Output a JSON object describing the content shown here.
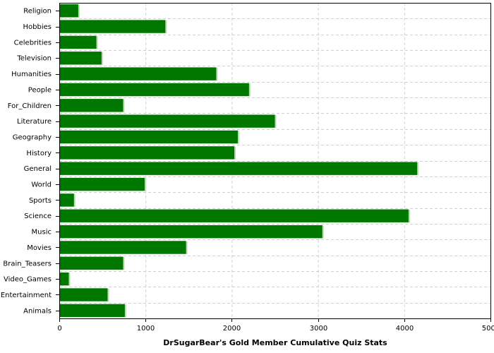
{
  "chart_data": {
    "type": "bar",
    "orientation": "horizontal",
    "title": "",
    "xlabel": "DrSugarBear's Gold Member Cumulative Quiz Stats",
    "ylabel": "",
    "xlim": [
      0,
      5000
    ],
    "xticks": [
      0,
      1000,
      2000,
      3000,
      4000,
      5000
    ],
    "grid": true,
    "categories": [
      "Religion",
      "Hobbies",
      "Celebrities",
      "Television",
      "Humanities",
      "People",
      "For_Children",
      "Literature",
      "Geography",
      "History",
      "General",
      "World",
      "Sports",
      "Science",
      "Music",
      "Movies",
      "Brain_Teasers",
      "Video_Games",
      "Entertainment",
      "Animals"
    ],
    "values": [
      220,
      1230,
      430,
      490,
      1820,
      2200,
      740,
      2500,
      2070,
      2030,
      4150,
      990,
      170,
      4050,
      3050,
      1470,
      740,
      110,
      560,
      760
    ],
    "colors": {
      "bar": "#007800",
      "bar_shadow": "#b8dcb0"
    }
  }
}
